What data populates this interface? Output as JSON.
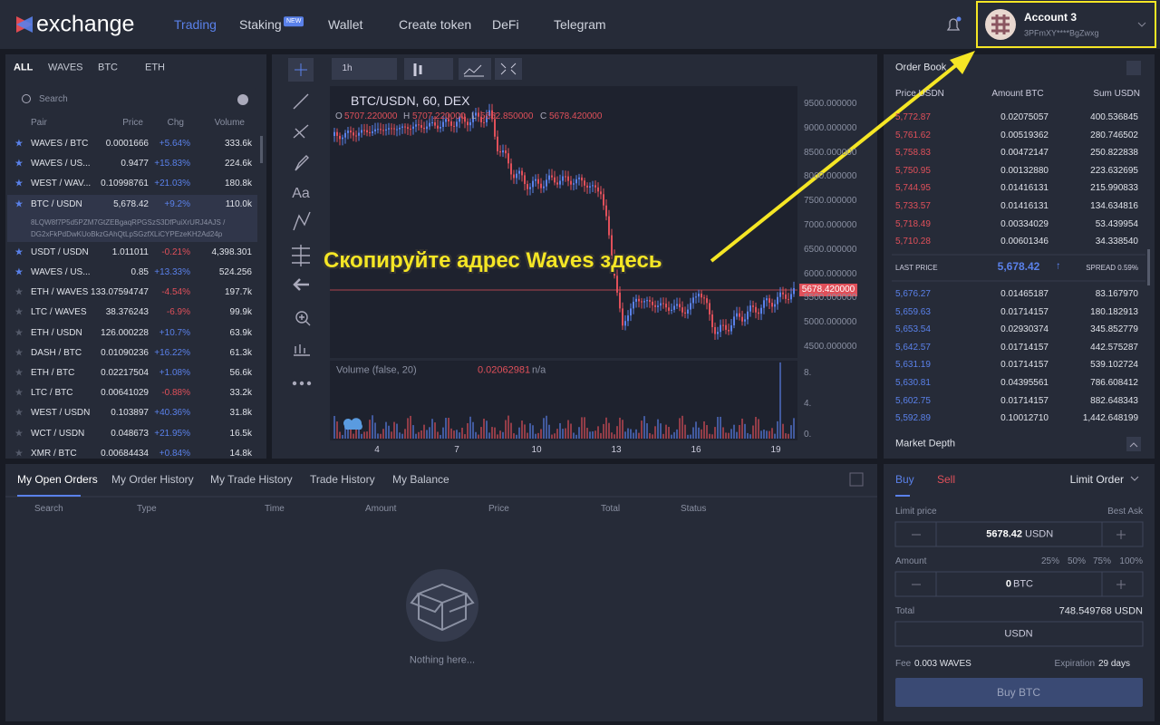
{
  "header": {
    "logo": "exchange",
    "nav": [
      "Trading",
      "Staking",
      "Wallet",
      "Create token",
      "DeFi",
      "Telegram"
    ],
    "badge": "NEW",
    "account": {
      "name": "Account 3",
      "address": "3PFmXY****BgZwxg"
    }
  },
  "pairs": {
    "tabs": [
      "ALL",
      "WAVES",
      "BTC",
      "ETH"
    ],
    "search": "Search",
    "columns": [
      "Pair",
      "Price",
      "Chg",
      "Volume"
    ],
    "rows": [
      {
        "pair": "WAVES / BTC",
        "price": "0.0001666",
        "change": "+5.64%",
        "volume": "333.6k",
        "favorite": true
      },
      {
        "pair": "WAVES / US...",
        "price": "0.9477",
        "change": "+15.83%",
        "volume": "224.6k",
        "favorite": true
      },
      {
        "pair": "WEST / WAV...",
        "price": "0.10998761",
        "change": "+21.03%",
        "volume": "180.8k",
        "favorite": true
      },
      {
        "pair": "BTC / USDN",
        "price": "5,678.42",
        "change": "+9.2%",
        "volume": "110.0k",
        "favorite": true
      },
      {
        "pair": "USDT / USDN",
        "price": "1.011011",
        "change": "-0.21%",
        "volume": "4,398.301",
        "favorite": true
      },
      {
        "pair": "WAVES / US...",
        "price": "0.85",
        "change": "+13.33%",
        "volume": "524.256",
        "favorite": true
      },
      {
        "pair": "ETH / WAVES",
        "price": "133.07594747",
        "change": "-4.54%",
        "volume": "197.7k",
        "favorite": false
      },
      {
        "pair": "LTC / WAVES",
        "price": "38.376243",
        "change": "-6.9%",
        "volume": "99.9k",
        "favorite": false
      },
      {
        "pair": "ETH / USDN",
        "price": "126.000228",
        "change": "+10.7%",
        "volume": "63.9k",
        "favorite": false
      },
      {
        "pair": "DASH / BTC",
        "price": "0.01090236",
        "change": "+16.22%",
        "volume": "61.3k",
        "favorite": false
      },
      {
        "pair": "ETH / BTC",
        "price": "0.02217504",
        "change": "+1.08%",
        "volume": "56.6k",
        "favorite": false
      },
      {
        "pair": "LTC / BTC",
        "price": "0.00641029",
        "change": "-0.88%",
        "volume": "33.2k",
        "favorite": false
      },
      {
        "pair": "WEST / USDN",
        "price": "0.103897",
        "change": "+40.36%",
        "volume": "31.8k",
        "favorite": false
      },
      {
        "pair": "WCT / USDN",
        "price": "0.048673",
        "change": "+21.95%",
        "volume": "16.5k",
        "favorite": false
      },
      {
        "pair": "XMR / BTC",
        "price": "0.00684434",
        "change": "+0.84%",
        "volume": "14.8k",
        "favorite": false
      }
    ],
    "selected_address": "8LQW8f7P5d5PZM7GtZEBgaqRPGSzS3DfPuiXrURJ4AJS / DG2xFkPdDwKUoBkzGAhQtLpSGzfXLiCYPEzeKH2Ad24p"
  },
  "chart": {
    "interval": "1h",
    "tool_text": "Aa",
    "symbol": "BTC/USDN, 60, DEX",
    "ohlc": [
      [
        "O",
        "5707.220000"
      ],
      [
        "H",
        "5707.220000"
      ],
      [
        "L",
        "5652.850000"
      ],
      [
        "C",
        "5678.420000"
      ]
    ],
    "price_axis": [
      "9500.000000",
      "9000.000000",
      "8500.000000",
      "8000.000000",
      "7500.000000",
      "7000.000000",
      "6500.000000",
      "6000.000000",
      "5500.000000",
      "5000.000000",
      "4500.000000"
    ],
    "current_price": "5678.420000",
    "volume_title": "Volume (false, 20)",
    "volume_value": "0.02062981",
    "volume_na": "n/a",
    "volume_axis": [
      "8.",
      "4.",
      "0."
    ],
    "x_axis": [
      "4",
      "7",
      "10",
      "13",
      "16",
      "19"
    ]
  },
  "annotation": "Скопируйте адрес Waves здесь",
  "orderbook": {
    "title": "Order Book",
    "columns": [
      "Price USDN",
      "Amount BTC",
      "Sum USDN"
    ],
    "asks": [
      [
        "5,772.87",
        "0.02075057",
        "400.536845"
      ],
      [
        "5,761.62",
        "0.00519362",
        "280.746502"
      ],
      [
        "5,758.83",
        "0.00472147",
        "250.822838"
      ],
      [
        "5,750.95",
        "0.00132880",
        "223.632695"
      ],
      [
        "5,744.95",
        "0.01416131",
        "215.990833"
      ],
      [
        "5,733.57",
        "0.01416131",
        "134.634816"
      ],
      [
        "5,718.49",
        "0.00334029",
        "53.439954"
      ],
      [
        "5,710.28",
        "0.00601346",
        "34.338540"
      ]
    ],
    "last_price_label": "LAST PRICE",
    "last_price": "5,678.42",
    "spread": "SPREAD 0.59%",
    "bids": [
      [
        "5,676.27",
        "0.01465187",
        "83.167970"
      ],
      [
        "5,659.63",
        "0.01714157",
        "180.182913"
      ],
      [
        "5,653.54",
        "0.02930374",
        "345.852779"
      ],
      [
        "5,642.57",
        "0.01714157",
        "442.575287"
      ],
      [
        "5,631.19",
        "0.01714157",
        "539.102724"
      ],
      [
        "5,630.81",
        "0.04395561",
        "786.608412"
      ],
      [
        "5,602.75",
        "0.01714157",
        "882.648343"
      ],
      [
        "5,592.89",
        "0.10012710",
        "1,442.648199"
      ]
    ],
    "depth_title": "Market Depth"
  },
  "orders": {
    "tabs": [
      "My Open Orders",
      "My Order History",
      "My Trade History",
      "Trade History",
      "My Balance"
    ],
    "columns": [
      "Search",
      "Type",
      "Time",
      "Amount",
      "Price",
      "Total",
      "Status"
    ],
    "empty": "Nothing here..."
  },
  "form": {
    "buy": "Buy",
    "sell": "Sell",
    "order_type": "Limit Order",
    "limit_label": "Limit price",
    "best_ask": "Best Ask",
    "limit_value": "5678.42",
    "limit_unit": "USDN",
    "amount_label": "Amount",
    "percents": [
      "25%",
      "50%",
      "75%",
      "100%"
    ],
    "amount_value": "0",
    "amount_unit": "BTC",
    "total_label": "Total",
    "total_value": "748.549768 USDN",
    "total_unit": "USDN",
    "fee_label": "Fee",
    "fee_value": "0.003 WAVES",
    "expiration_label": "Expiration",
    "expiration_value": "29 days",
    "submit": "Buy BTC"
  }
}
